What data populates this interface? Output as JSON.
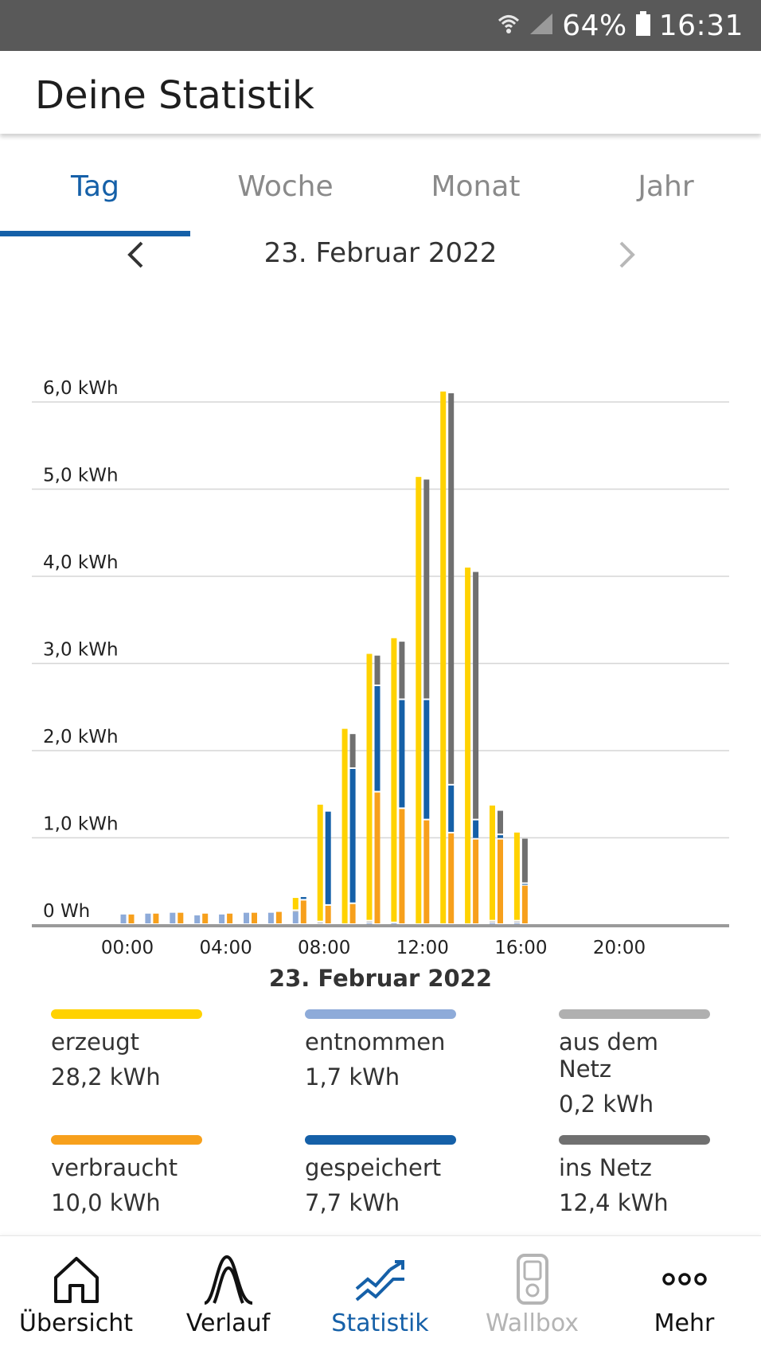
{
  "status_bar": {
    "battery": "64%",
    "time": "16:31",
    "icons": [
      "wifi-icon",
      "signal-icon",
      "battery-icon"
    ]
  },
  "app_bar": {
    "title": "Deine Statistik"
  },
  "tabs": [
    {
      "label": "Tag",
      "active": true
    },
    {
      "label": "Woche",
      "active": false
    },
    {
      "label": "Monat",
      "active": false
    },
    {
      "label": "Jahr",
      "active": false
    }
  ],
  "date_nav": {
    "date": "23. Februar 2022",
    "prev_icon": "chevron-left-icon",
    "next_icon": "chevron-right-icon"
  },
  "chart_data": {
    "type": "bar",
    "title": "23. Februar 2022",
    "y_ticks": [
      "0 Wh",
      "1,0 kWh",
      "2,0 kWh",
      "3,0 kWh",
      "4,0 kWh",
      "5,0 kWh",
      "6,0 kWh"
    ],
    "x_ticks": [
      "00:00",
      "04:00",
      "08:00",
      "12:00",
      "16:00",
      "20:00"
    ],
    "ylim": [
      0,
      6
    ],
    "x_unit": "hour",
    "grid": true,
    "colors": {
      "erzeugt": "#ffd200",
      "verbraucht": "#f7a01c",
      "entnommen": "#8eabd9",
      "gespeichert": "#1560a8",
      "aus_dem_netz": "#b0b0b0",
      "ins_netz": "#707070"
    },
    "hours": [
      0,
      1,
      2,
      3,
      4,
      5,
      6,
      7,
      8,
      9,
      10,
      11,
      12,
      13,
      14,
      15,
      16
    ],
    "series": [
      {
        "name": "erzeugt",
        "values": [
          0,
          0,
          0,
          0,
          0,
          0,
          0,
          0.15,
          1.35,
          2.25,
          3.07,
          3.27,
          5.14,
          6.12,
          4.1,
          1.33,
          1.02
        ]
      },
      {
        "name": "verbraucht",
        "values": [
          0.12,
          0.13,
          0.14,
          0.13,
          0.13,
          0.14,
          0.15,
          0.28,
          0.22,
          0.24,
          1.52,
          1.33,
          1.2,
          1.05,
          0.98,
          0.98,
          0.45
        ]
      },
      {
        "name": "entnommen",
        "values": [
          0.12,
          0.13,
          0.14,
          0.11,
          0.12,
          0.14,
          0.14,
          0.15,
          0.01,
          0.0,
          0.02,
          0.02,
          0.0,
          0.0,
          0.0,
          0.02,
          0.02
        ]
      },
      {
        "name": "gespeichert",
        "values": [
          0,
          0,
          0,
          0,
          0,
          0,
          0,
          0.04,
          1.08,
          1.55,
          1.22,
          1.25,
          1.38,
          0.55,
          0.22,
          0.05,
          0.02
        ]
      },
      {
        "name": "aus dem Netz",
        "values": [
          0,
          0,
          0,
          0,
          0,
          0,
          0,
          0.01,
          0.02,
          0.0,
          0.02,
          0.0,
          0.0,
          0.0,
          0.0,
          0.02,
          0.02
        ]
      },
      {
        "name": "ins Netz",
        "values": [
          0,
          0,
          0,
          0,
          0,
          0,
          0,
          0,
          0.0,
          0.4,
          0.35,
          0.67,
          2.53,
          4.5,
          2.85,
          0.28,
          0.52
        ]
      }
    ]
  },
  "legend": [
    {
      "label": "erzeugt",
      "value": "28,2 kWh",
      "color": "#ffd200"
    },
    {
      "label": "entnommen",
      "value": "1,7 kWh",
      "color": "#8eabd9"
    },
    {
      "label": "aus dem Netz",
      "value": "0,2 kWh",
      "color": "#b0b0b0"
    },
    {
      "label": "verbraucht",
      "value": "10,0 kWh",
      "color": "#f7a01c"
    },
    {
      "label": "gespeichert",
      "value": "7,7 kWh",
      "color": "#1560a8"
    },
    {
      "label": "ins Netz",
      "value": "12,4 kWh",
      "color": "#707070"
    }
  ],
  "bottom_nav": [
    {
      "label": "Übersicht",
      "icon": "home-icon",
      "state": "normal"
    },
    {
      "label": "Verlauf",
      "icon": "curve-icon",
      "state": "normal"
    },
    {
      "label": "Statistik",
      "icon": "trend-icon",
      "state": "active"
    },
    {
      "label": "Wallbox",
      "icon": "wallbox-icon",
      "state": "disabled"
    },
    {
      "label": "Mehr",
      "icon": "more-icon",
      "state": "normal"
    }
  ]
}
